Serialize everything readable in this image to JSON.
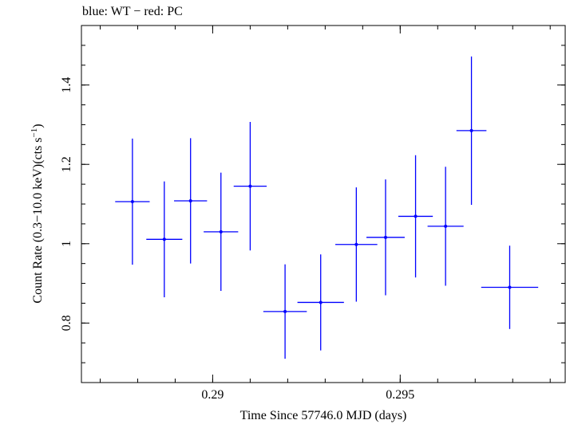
{
  "chart_data": {
    "type": "scatter",
    "title": "blue: WT − red: PC",
    "xlabel": "Time Since 57746.0 MJD (days)",
    "ylabel_main": "Count Rate (0.3−10.0 keV)(cts s",
    "ylabel_sup": "−1",
    "ylabel_end": ")",
    "xlim": [
      0.2865,
      0.2994
    ],
    "ylim": [
      0.65,
      1.55
    ],
    "x_ticks": [
      {
        "v": 0.29,
        "label": "0.29"
      },
      {
        "v": 0.295,
        "label": "0.295"
      }
    ],
    "y_ticks": [
      {
        "v": 0.8,
        "label": "0.8"
      },
      {
        "v": 1.0,
        "label": "1"
      },
      {
        "v": 1.2,
        "label": "1.2"
      },
      {
        "v": 1.4,
        "label": "1.4"
      }
    ],
    "x_minor_step": 0.001,
    "y_minor_step": 0.05,
    "grid": false,
    "color": "#0000ff",
    "series": [
      {
        "points": [
          {
            "x": 0.28786,
            "xerr": 0.00046,
            "y": 1.106,
            "yerr": 0.159
          },
          {
            "x": 0.28871,
            "xerr": 0.00048,
            "y": 1.011,
            "yerr": 0.146
          },
          {
            "x": 0.28941,
            "xerr": 0.00044,
            "y": 1.108,
            "yerr": 0.158
          },
          {
            "x": 0.29022,
            "xerr": 0.00046,
            "y": 1.03,
            "yerr": 0.149
          },
          {
            "x": 0.291,
            "xerr": 0.00044,
            "y": 1.145,
            "yerr": 0.162
          },
          {
            "x": 0.29193,
            "xerr": 0.00058,
            "y": 0.829,
            "yerr": 0.119
          },
          {
            "x": 0.29288,
            "xerr": 0.00062,
            "y": 0.852,
            "yerr": 0.121
          },
          {
            "x": 0.29383,
            "xerr": 0.00056,
            "y": 0.998,
            "yerr": 0.144
          },
          {
            "x": 0.29461,
            "xerr": 0.00051,
            "y": 1.016,
            "yerr": 0.146
          },
          {
            "x": 0.29541,
            "xerr": 0.00046,
            "y": 1.069,
            "yerr": 0.154
          },
          {
            "x": 0.29621,
            "xerr": 0.00048,
            "y": 1.044,
            "yerr": 0.15
          },
          {
            "x": 0.2969,
            "xerr": 0.0004,
            "y": 1.285,
            "yerr": 0.187
          },
          {
            "x": 0.29792,
            "xerr": 0.00076,
            "y": 0.89,
            "yerr": 0.105
          }
        ]
      }
    ]
  }
}
